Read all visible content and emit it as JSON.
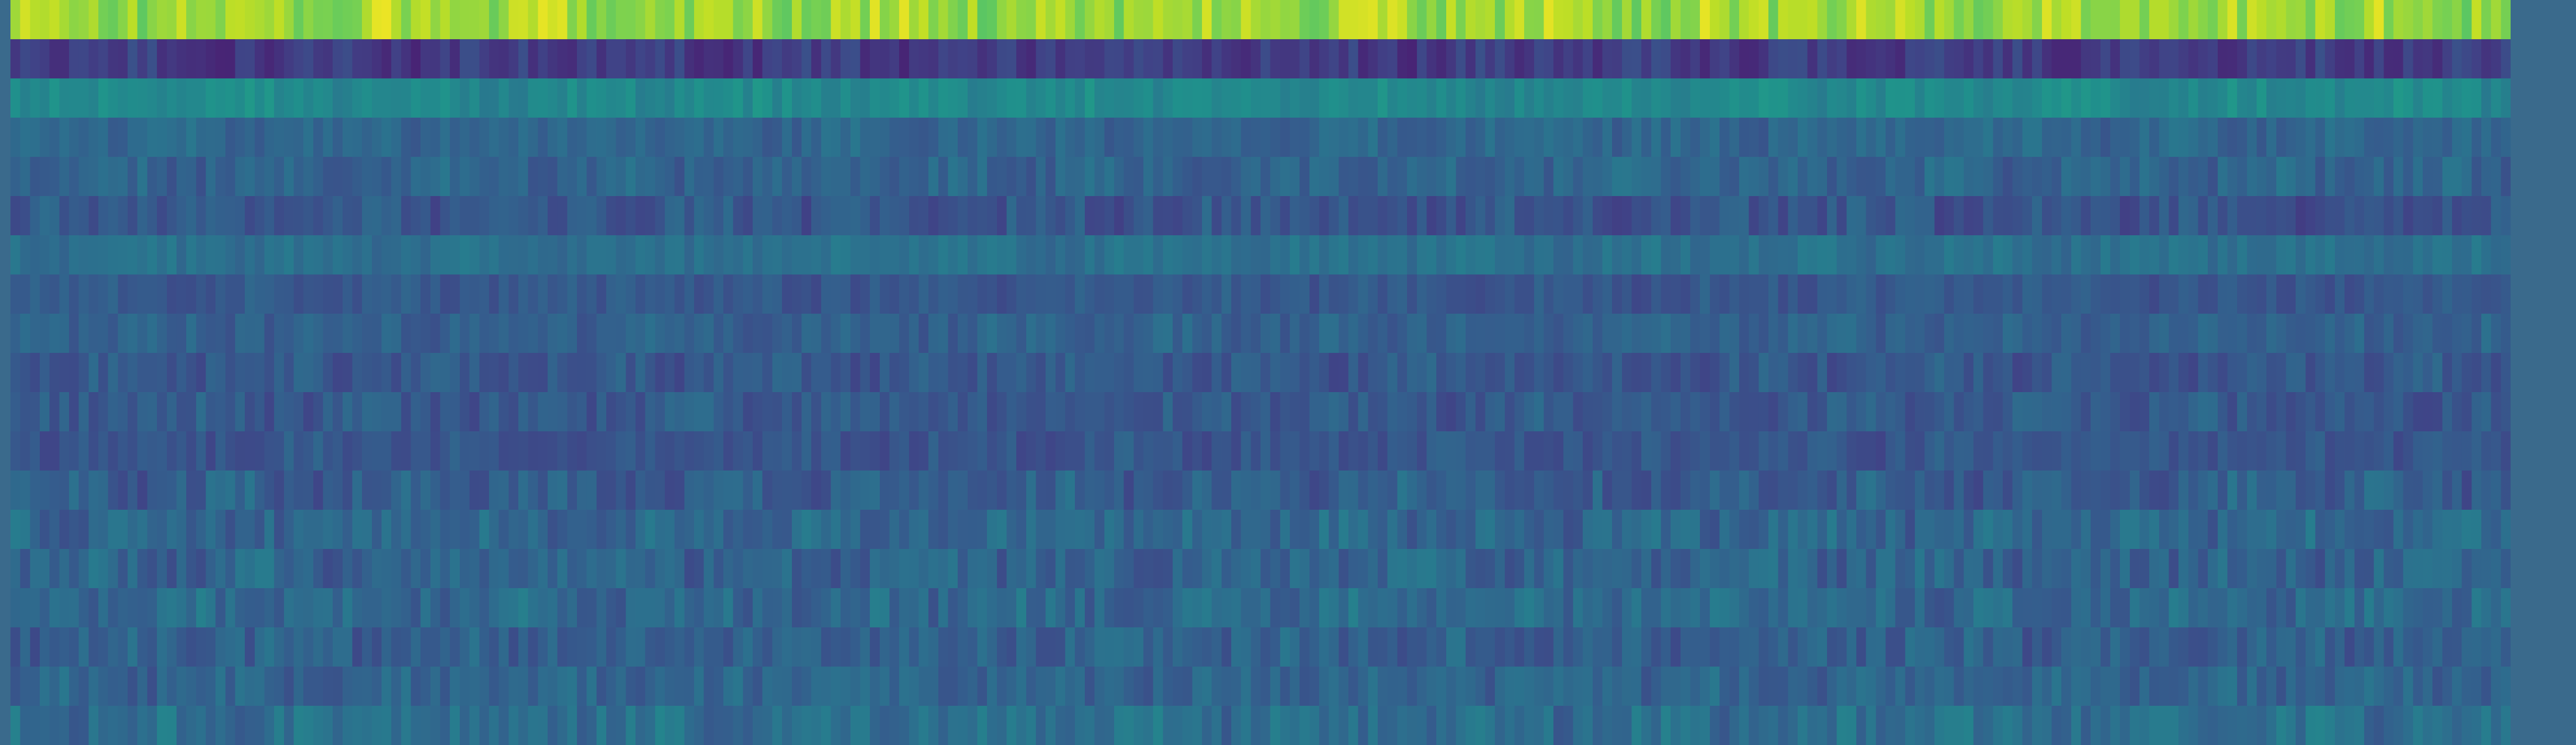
{
  "chart_data": {
    "type": "heatmap",
    "colormap": "viridis",
    "rows": 19,
    "columns": 256,
    "value_range": [
      0,
      1
    ],
    "row_profiles": [
      {
        "row": 0,
        "mean": 0.85,
        "spread": 0.09
      },
      {
        "row": 1,
        "mean": 0.18,
        "spread": 0.06
      },
      {
        "row": 2,
        "mean": 0.47,
        "spread": 0.05
      },
      {
        "row": 3,
        "mean": 0.33,
        "spread": 0.05
      },
      {
        "row": 4,
        "mean": 0.32,
        "spread": 0.06
      },
      {
        "row": 5,
        "mean": 0.27,
        "spread": 0.07
      },
      {
        "row": 6,
        "mean": 0.37,
        "spread": 0.04
      },
      {
        "row": 7,
        "mean": 0.28,
        "spread": 0.05
      },
      {
        "row": 8,
        "mean": 0.31,
        "spread": 0.05
      },
      {
        "row": 9,
        "mean": 0.28,
        "spread": 0.06
      },
      {
        "row": 10,
        "mean": 0.28,
        "spread": 0.06
      },
      {
        "row": 11,
        "mean": 0.27,
        "spread": 0.05
      },
      {
        "row": 12,
        "mean": 0.3,
        "spread": 0.07
      },
      {
        "row": 13,
        "mean": 0.33,
        "spread": 0.07
      },
      {
        "row": 14,
        "mean": 0.32,
        "spread": 0.07
      },
      {
        "row": 15,
        "mean": 0.34,
        "spread": 0.07
      },
      {
        "row": 16,
        "mean": 0.31,
        "spread": 0.07
      },
      {
        "row": 17,
        "mean": 0.32,
        "spread": 0.06
      },
      {
        "row": 18,
        "mean": 0.36,
        "spread": 0.07
      }
    ],
    "title": "",
    "xlabel": "",
    "ylabel": "",
    "legend": "none",
    "grid": false
  }
}
